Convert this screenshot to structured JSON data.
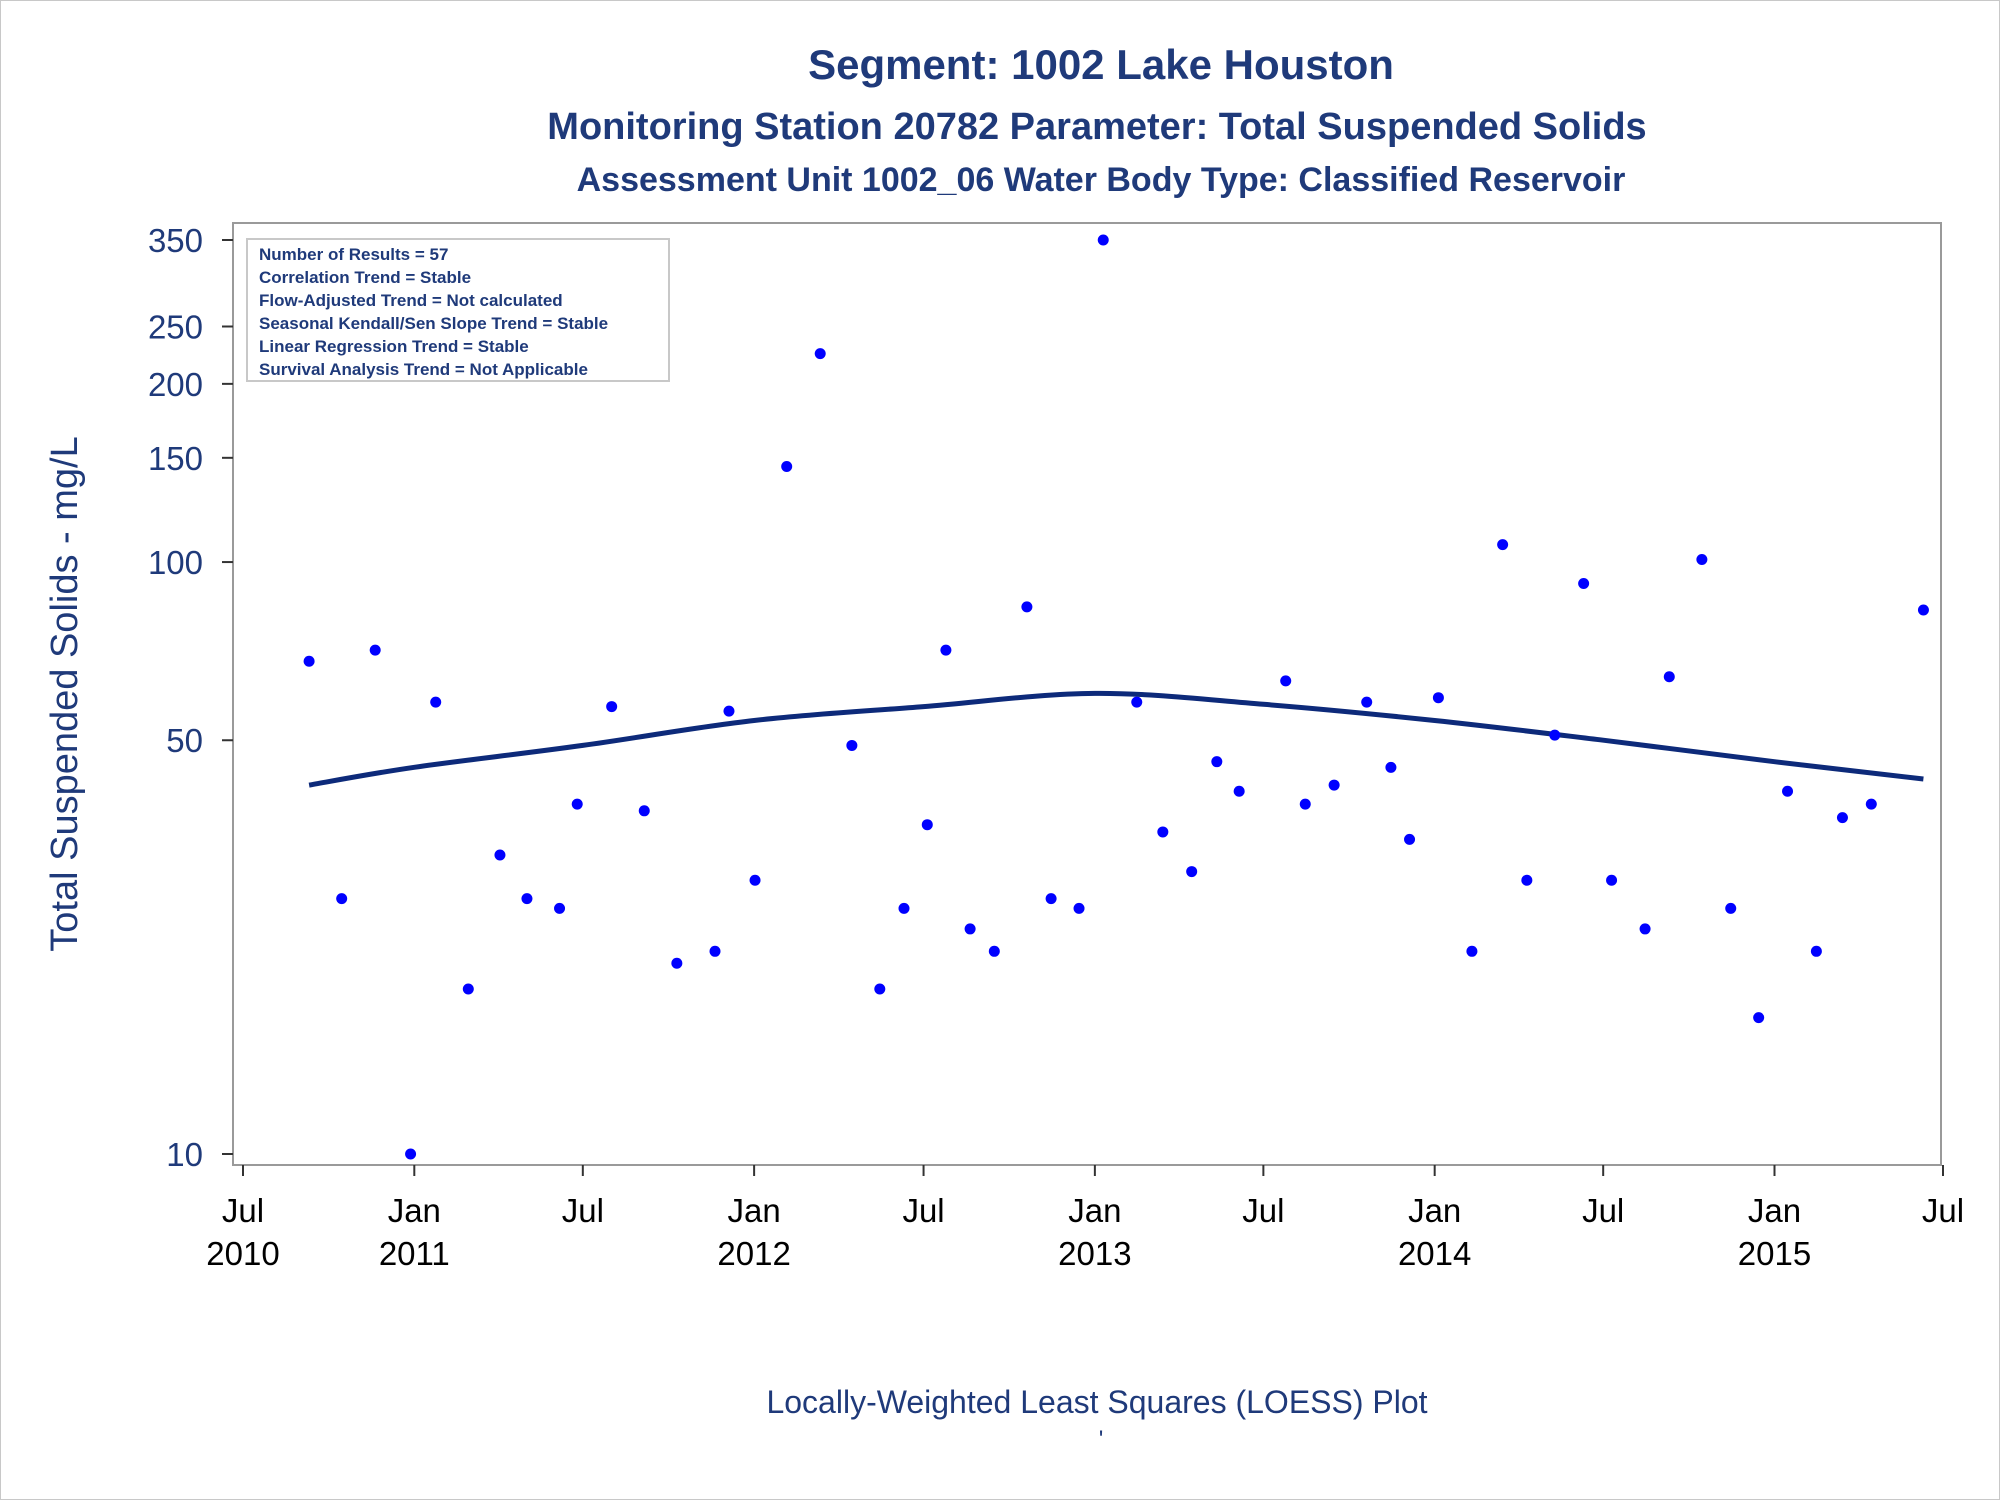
{
  "chart_data": {
    "type": "scatter",
    "title": "Segment: 1002  Lake Houston",
    "subtitle": "Monitoring Station 20782 Parameter: Total Suspended Solids",
    "subtitle2": "Assessment Unit 1002_06   Water Body Type: Classified Reservoir",
    "xlabel": "",
    "ylabel": "Total Suspended Solids - mg/L",
    "footnote": "Locally-Weighted Least Squares (LOESS) Plot",
    "footnote_mark": "'",
    "yscale": "log",
    "ylim": [
      10,
      350
    ],
    "yticks": [
      10,
      50,
      100,
      150,
      200,
      250,
      350
    ],
    "xlim": [
      "2010-07-01",
      "2015-07-01"
    ],
    "xticks": [
      {
        "date": "2010-07-01",
        "label": "Jul",
        "year": "2010"
      },
      {
        "date": "2011-01-01",
        "label": "Jan",
        "year": "2011"
      },
      {
        "date": "2011-07-01",
        "label": "Jul",
        "year": ""
      },
      {
        "date": "2012-01-01",
        "label": "Jan",
        "year": "2012"
      },
      {
        "date": "2012-07-01",
        "label": "Jul",
        "year": ""
      },
      {
        "date": "2013-01-01",
        "label": "Jan",
        "year": "2013"
      },
      {
        "date": "2013-07-01",
        "label": "Jul",
        "year": ""
      },
      {
        "date": "2014-01-01",
        "label": "Jan",
        "year": "2014"
      },
      {
        "date": "2014-07-01",
        "label": "Jul",
        "year": ""
      },
      {
        "date": "2015-01-01",
        "label": "Jan",
        "year": "2015"
      },
      {
        "date": "2015-07-01",
        "label": "Jul",
        "year": ""
      }
    ],
    "grid": false,
    "stats_box": [
      "Number of Results = 57",
      "Correlation Trend = Stable",
      "Flow-Adjusted Trend = Not calculated",
      "Seasonal Kendall/Sen Slope Trend = Stable",
      "Linear Regression Trend = Stable",
      "Survival Analysis Trend = Not Applicable"
    ],
    "stats_box_position": "top-left",
    "colors": {
      "points": "#0000ff",
      "loess": "#0d2a7a",
      "text": "#1f3a7a",
      "frame": "#9a9a9a"
    },
    "series": [
      {
        "type": "scatter",
        "points": [
          {
            "x": "2010-09-10",
            "y": 68
          },
          {
            "x": "2010-10-15",
            "y": 27
          },
          {
            "x": "2010-11-20",
            "y": 71
          },
          {
            "x": "2010-12-28",
            "y": 10
          },
          {
            "x": "2011-01-24",
            "y": 58
          },
          {
            "x": "2011-02-28",
            "y": 19
          },
          {
            "x": "2011-04-03",
            "y": 32
          },
          {
            "x": "2011-05-02",
            "y": 27
          },
          {
            "x": "2011-06-06",
            "y": 26
          },
          {
            "x": "2011-06-25",
            "y": 39
          },
          {
            "x": "2011-08-01",
            "y": 57
          },
          {
            "x": "2011-09-05",
            "y": 38
          },
          {
            "x": "2011-10-10",
            "y": 21
          },
          {
            "x": "2011-11-20",
            "y": 22
          },
          {
            "x": "2011-12-05",
            "y": 56
          },
          {
            "x": "2012-01-02",
            "y": 29
          },
          {
            "x": "2012-02-05",
            "y": 145
          },
          {
            "x": "2012-03-12",
            "y": 225
          },
          {
            "x": "2012-04-15",
            "y": 49
          },
          {
            "x": "2012-05-15",
            "y": 19
          },
          {
            "x": "2012-06-10",
            "y": 26
          },
          {
            "x": "2012-07-05",
            "y": 36
          },
          {
            "x": "2012-07-25",
            "y": 71
          },
          {
            "x": "2012-08-20",
            "y": 24
          },
          {
            "x": "2012-09-15",
            "y": 22
          },
          {
            "x": "2012-10-20",
            "y": 84
          },
          {
            "x": "2012-11-15",
            "y": 27
          },
          {
            "x": "2012-12-15",
            "y": 26
          },
          {
            "x": "2013-01-10",
            "y": 350
          },
          {
            "x": "2013-02-15",
            "y": 58
          },
          {
            "x": "2013-03-15",
            "y": 35
          },
          {
            "x": "2013-04-15",
            "y": 30
          },
          {
            "x": "2013-05-12",
            "y": 46
          },
          {
            "x": "2013-06-05",
            "y": 41
          },
          {
            "x": "2013-07-25",
            "y": 63
          },
          {
            "x": "2013-08-15",
            "y": 39
          },
          {
            "x": "2013-09-15",
            "y": 42
          },
          {
            "x": "2013-10-20",
            "y": 58
          },
          {
            "x": "2013-11-15",
            "y": 45
          },
          {
            "x": "2013-12-05",
            "y": 34
          },
          {
            "x": "2014-01-05",
            "y": 59
          },
          {
            "x": "2014-02-10",
            "y": 22
          },
          {
            "x": "2014-03-15",
            "y": 107
          },
          {
            "x": "2014-04-10",
            "y": 29
          },
          {
            "x": "2014-05-10",
            "y": 51
          },
          {
            "x": "2014-06-10",
            "y": 92
          },
          {
            "x": "2014-07-10",
            "y": 29
          },
          {
            "x": "2014-08-15",
            "y": 24
          },
          {
            "x": "2014-09-10",
            "y": 64
          },
          {
            "x": "2014-10-15",
            "y": 101
          },
          {
            "x": "2014-11-15",
            "y": 26
          },
          {
            "x": "2014-12-15",
            "y": 17
          },
          {
            "x": "2015-01-15",
            "y": 41
          },
          {
            "x": "2015-02-15",
            "y": 22
          },
          {
            "x": "2015-03-15",
            "y": 37
          },
          {
            "x": "2015-04-15",
            "y": 39
          },
          {
            "x": "2015-06-10",
            "y": 83
          }
        ]
      },
      {
        "type": "line",
        "points": [
          {
            "x": "2010-09-10",
            "y": 42
          },
          {
            "x": "2011-01-01",
            "y": 45
          },
          {
            "x": "2011-07-01",
            "y": 49
          },
          {
            "x": "2012-01-01",
            "y": 54
          },
          {
            "x": "2012-07-01",
            "y": 57
          },
          {
            "x": "2013-01-01",
            "y": 60
          },
          {
            "x": "2013-07-01",
            "y": 57.5
          },
          {
            "x": "2014-01-01",
            "y": 54
          },
          {
            "x": "2014-07-01",
            "y": 50
          },
          {
            "x": "2015-01-01",
            "y": 46
          },
          {
            "x": "2015-06-10",
            "y": 43
          }
        ]
      }
    ]
  }
}
